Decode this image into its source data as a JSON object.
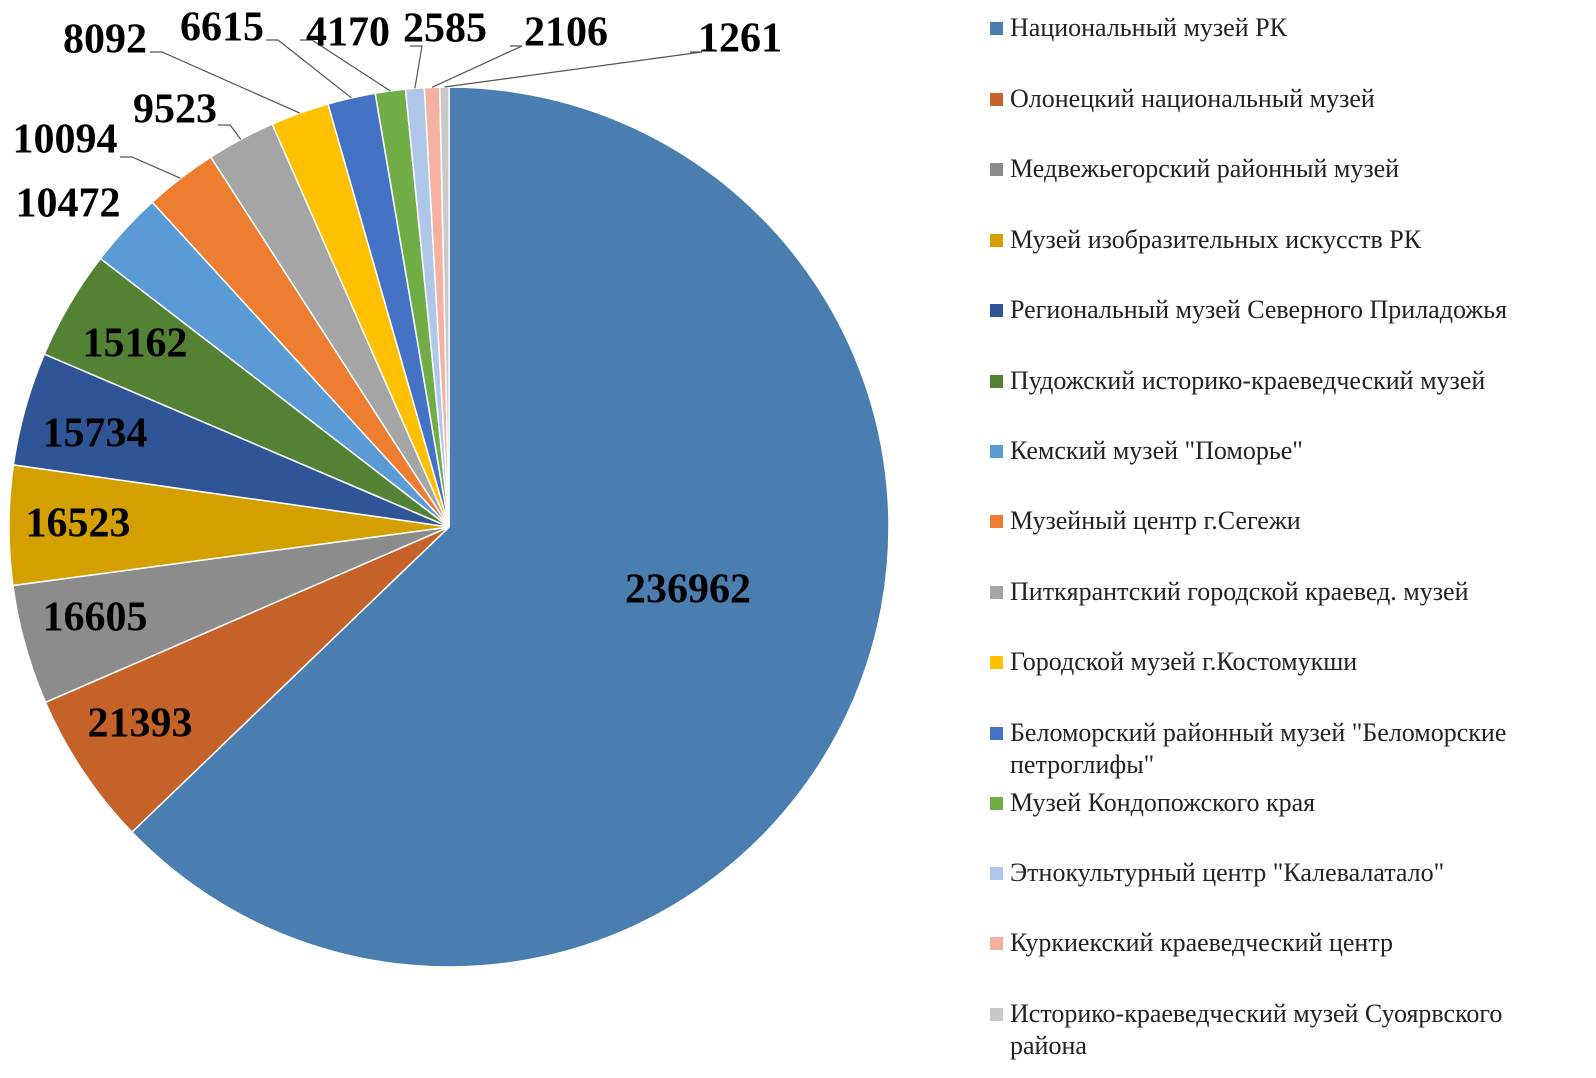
{
  "chart_data": {
    "type": "pie",
    "categories": [
      "Национальный музей РК",
      "Олонецкий национальный музей",
      "Медвежьегорский районный музей",
      "Музей изобразительных искусств РК",
      "Региональный музей Северного Приладожья",
      "Пудожский историко-краеведческий музей",
      "Кемский музей \"Поморье\"",
      "Музейный центр г.Сегежи",
      "Питкярантский городской краевед. музей",
      "Городской музей г.Костомукши",
      "Беломорский районный музей \"Беломорские петроглифы\"",
      "Музей Кондопожского края",
      "Этнокультурный центр \"Калевалатало\"",
      "Куркиекский краеведческий центр",
      "Историко-краеведческий музей Суоярвского района"
    ],
    "values": [
      236962,
      21393,
      16605,
      16523,
      15734,
      15162,
      10472,
      10094,
      9523,
      8092,
      6615,
      4170,
      2585,
      2106,
      1261
    ],
    "colors": [
      "#4a7eb0",
      "#c5622a",
      "#8c8c8c",
      "#d4a000",
      "#2f5597",
      "#548235",
      "#5b9bd5",
      "#ed7d31",
      "#a5a5a5",
      "#ffc000",
      "#4472c4",
      "#70ad47",
      "#aec6e8",
      "#f4b0a0",
      "#c9c9c9"
    ]
  }
}
